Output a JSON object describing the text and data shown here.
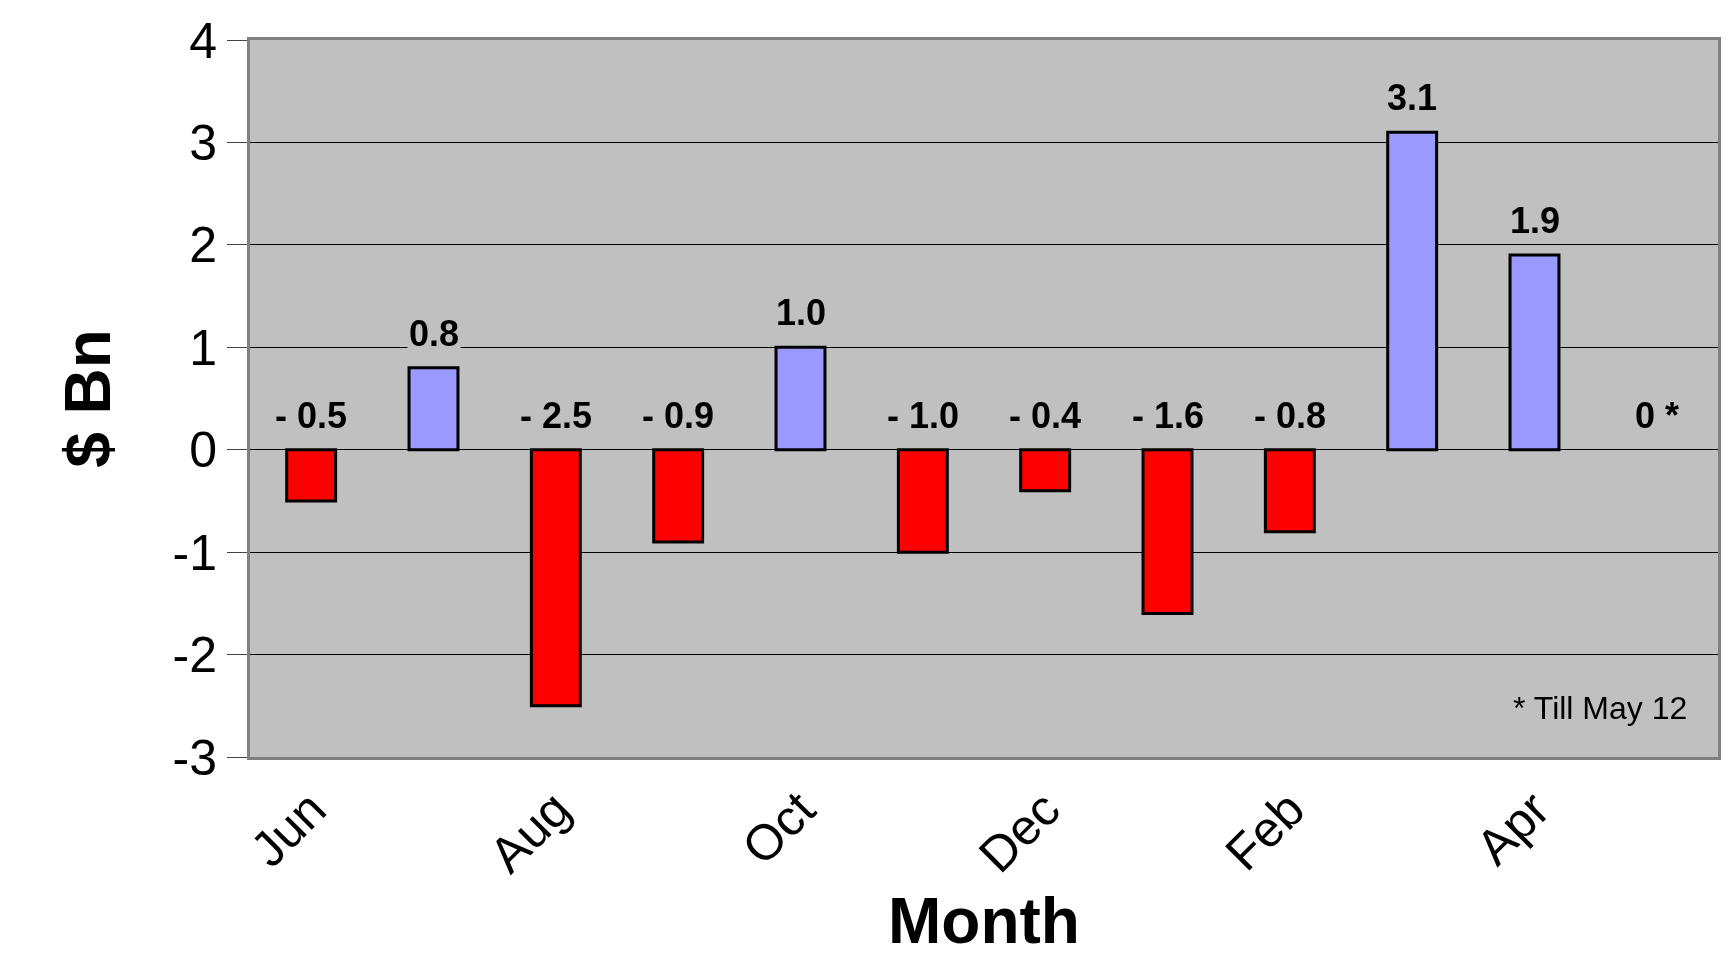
{
  "chart_data": {
    "type": "bar",
    "xlabel": "Month",
    "ylabel": "$ Bn",
    "categories": [
      "Jun",
      null,
      "Aug",
      null,
      "Oct",
      null,
      "Dec",
      null,
      "Feb",
      null,
      "Apr",
      null
    ],
    "values": [
      -0.5,
      0.8,
      -2.5,
      -0.9,
      1.0,
      -1.0,
      -0.4,
      -1.6,
      -0.8,
      3.1,
      1.9,
      0
    ],
    "colors": [
      "#ff0000",
      "#9999ff",
      "#ff0000",
      "#ff0000",
      "#9999ff",
      "#ff0000",
      "#ff0000",
      "#ff0000",
      "#ff0000",
      "#9999ff",
      "#9999ff",
      "#9999ff"
    ],
    "value_labels": [
      "- 0.5",
      "0.8",
      "- 2.5",
      "- 0.9",
      "1.0",
      "- 1.0",
      "- 0.4",
      "- 1.6",
      "- 0.8",
      "3.1",
      "1.9",
      "0 *"
    ],
    "ylim": [
      -3,
      4
    ],
    "yticks": [
      -3,
      -2,
      -1,
      0,
      1,
      2,
      3,
      4
    ],
    "grid": "y",
    "annotations": [
      "* Till May 12"
    ]
  }
}
